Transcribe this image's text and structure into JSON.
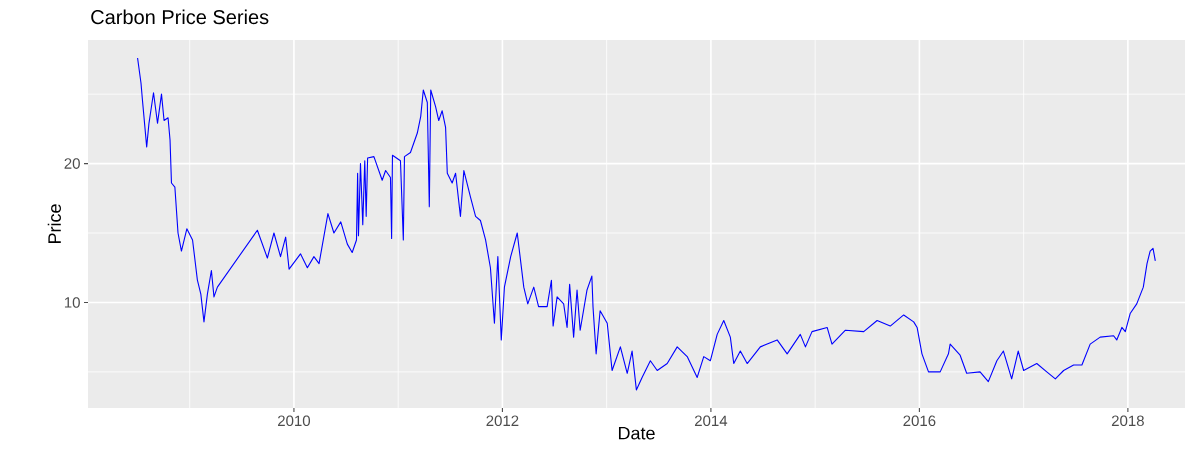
{
  "chart_data": {
    "type": "line",
    "title": "Carbon Price Series",
    "xlabel": "Date",
    "ylabel": "Price",
    "color": "#0000ff",
    "grid": true,
    "xlim": [
      "2008-01-10",
      "2018-07-20"
    ],
    "ylim": [
      2.4,
      28.9
    ],
    "xticks": [
      {
        "value": "2010-01-01",
        "label": "2010"
      },
      {
        "value": "2012-01-01",
        "label": "2012"
      },
      {
        "value": "2014-01-01",
        "label": "2014"
      },
      {
        "value": "2016-01-01",
        "label": "2016"
      },
      {
        "value": "2018-01-01",
        "label": "2018"
      }
    ],
    "yticks": [
      10,
      20
    ],
    "x": [
      "2008-07-02",
      "2008-07-14",
      "2008-07-19",
      "2008-08-03",
      "2008-08-11",
      "2008-08-27",
      "2008-09-10",
      "2008-09-24",
      "2008-10-03",
      "2008-10-17",
      "2008-10-24",
      "2008-10-29",
      "2008-11-10",
      "2008-11-21",
      "2008-12-03",
      "2008-12-22",
      "2009-01-11",
      "2009-01-28",
      "2009-02-09",
      "2009-02-20",
      "2009-03-04",
      "2009-03-18",
      "2009-03-27",
      "2009-04-08",
      "2009-08-26",
      "2009-09-30",
      "2009-10-23",
      "2009-11-15",
      "2009-12-03",
      "2009-12-15",
      "2010-01-24",
      "2010-02-17",
      "2010-03-12",
      "2010-03-30",
      "2010-04-30",
      "2010-05-21",
      "2010-06-14",
      "2010-07-07",
      "2010-07-24",
      "2010-08-08",
      "2010-08-12",
      "2010-08-15",
      "2010-08-22",
      "2010-08-30",
      "2010-09-06",
      "2010-09-11",
      "2010-09-16",
      "2010-10-08",
      "2010-11-06",
      "2010-11-18",
      "2010-12-05",
      "2010-12-09",
      "2010-12-12",
      "2011-01-09",
      "2011-01-19",
      "2011-01-23",
      "2011-02-13",
      "2011-03-09",
      "2011-03-21",
      "2011-03-30",
      "2011-04-13",
      "2011-04-20",
      "2011-04-25",
      "2011-05-12",
      "2011-05-23",
      "2011-06-04",
      "2011-06-16",
      "2011-06-22",
      "2011-07-09",
      "2011-07-21",
      "2011-08-07",
      "2011-08-19",
      "2011-09-11",
      "2011-09-29",
      "2011-10-16",
      "2011-11-03",
      "2011-11-20",
      "2011-12-04",
      "2011-12-16",
      "2011-12-28",
      "2012-01-08",
      "2012-01-30",
      "2012-02-22",
      "2012-03-16",
      "2012-03-30",
      "2012-04-20",
      "2012-05-07",
      "2012-06-06",
      "2012-06-21",
      "2012-06-27",
      "2012-07-11",
      "2012-08-03",
      "2012-08-15",
      "2012-08-24",
      "2012-09-07",
      "2012-09-19",
      "2012-09-30",
      "2012-10-24",
      "2012-11-10",
      "2012-11-14",
      "2012-11-25",
      "2012-12-09",
      "2013-01-03",
      "2013-01-20",
      "2013-02-01",
      "2013-02-18",
      "2013-03-14",
      "2013-03-31",
      "2013-04-15",
      "2013-05-05",
      "2013-06-03",
      "2013-06-27",
      "2013-08-01",
      "2013-09-05",
      "2013-10-10",
      "2013-11-14",
      "2013-12-07",
      "2013-12-30",
      "2014-01-23",
      "2014-02-15",
      "2014-03-10",
      "2014-03-22",
      "2014-04-14",
      "2014-05-08",
      "2014-06-23",
      "2014-07-17",
      "2014-08-21",
      "2014-09-25",
      "2014-11-10",
      "2014-11-28",
      "2014-12-21",
      "2015-02-12",
      "2015-03-01",
      "2015-04-17",
      "2015-06-20",
      "2015-08-06",
      "2015-09-21",
      "2015-11-07",
      "2015-12-12",
      "2015-12-24",
      "2016-01-10",
      "2016-02-02",
      "2016-03-14",
      "2016-04-12",
      "2016-04-18",
      "2016-05-23",
      "2016-06-15",
      "2016-08-01",
      "2016-08-30",
      "2016-09-29",
      "2016-10-22",
      "2016-11-20",
      "2016-12-13",
      "2017-01-01",
      "2017-02-16",
      "2017-03-23",
      "2017-04-22",
      "2017-05-21",
      "2017-06-25",
      "2017-07-24",
      "2017-08-22",
      "2017-09-26",
      "2017-11-12",
      "2017-11-23",
      "2017-12-11",
      "2017-12-23",
      "2018-01-09",
      "2018-02-01",
      "2018-02-24",
      "2018-03-09",
      "2018-03-20",
      "2018-03-30",
      "2018-04-07"
    ],
    "values": [
      27.6,
      25.8,
      24.6,
      21.2,
      22.9,
      25.1,
      22.9,
      25.0,
      23.1,
      23.3,
      21.7,
      18.6,
      18.3,
      15.0,
      13.7,
      15.3,
      14.5,
      11.6,
      10.6,
      8.6,
      10.6,
      12.3,
      10.4,
      11.1,
      15.2,
      13.2,
      15.0,
      13.3,
      14.7,
      12.4,
      13.5,
      12.5,
      13.3,
      12.8,
      16.4,
      15.0,
      15.8,
      14.2,
      13.6,
      14.5,
      19.3,
      14.8,
      20.0,
      15.6,
      20.2,
      16.2,
      20.4,
      20.5,
      18.8,
      19.5,
      19.0,
      14.6,
      20.6,
      20.2,
      14.5,
      20.5,
      20.8,
      22.2,
      23.4,
      25.3,
      24.4,
      16.9,
      25.3,
      24.1,
      23.1,
      23.8,
      22.6,
      19.3,
      18.6,
      19.3,
      16.2,
      19.5,
      17.6,
      16.2,
      15.9,
      14.5,
      12.5,
      8.5,
      13.3,
      7.3,
      11.1,
      13.3,
      15.0,
      11.1,
      9.9,
      11.1,
      9.7,
      9.7,
      11.6,
      8.3,
      10.4,
      9.9,
      8.2,
      11.3,
      7.5,
      10.9,
      8.0,
      10.9,
      11.9,
      9.7,
      6.3,
      9.4,
      8.5,
      5.1,
      5.8,
      6.8,
      4.9,
      6.5,
      3.7,
      4.6,
      5.8,
      5.1,
      5.6,
      6.8,
      6.1,
      4.6,
      6.1,
      5.8,
      7.7,
      8.7,
      7.5,
      5.6,
      6.5,
      5.6,
      6.8,
      7.0,
      7.3,
      6.3,
      7.7,
      6.8,
      7.9,
      8.2,
      7.0,
      8.0,
      7.9,
      8.7,
      8.3,
      9.1,
      8.6,
      8.2,
      6.3,
      5.0,
      5.0,
      6.3,
      7.0,
      6.2,
      4.9,
      5.0,
      4.3,
      5.8,
      6.5,
      4.5,
      6.5,
      5.1,
      5.6,
      5.0,
      4.5,
      5.1,
      5.5,
      5.5,
      7.0,
      7.5,
      7.6,
      7.3,
      8.2,
      7.9,
      9.2,
      9.9,
      11.1,
      12.8,
      13.7,
      13.9,
      13.0
    ]
  }
}
